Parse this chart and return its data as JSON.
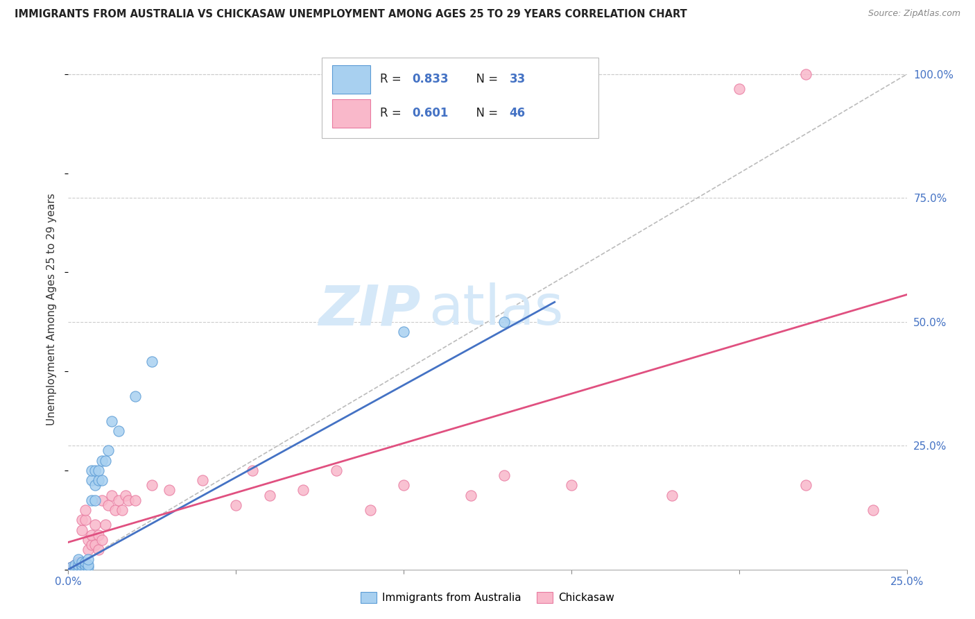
{
  "title": "IMMIGRANTS FROM AUSTRALIA VS CHICKASAW UNEMPLOYMENT AMONG AGES 25 TO 29 YEARS CORRELATION CHART",
  "source": "Source: ZipAtlas.com",
  "ylabel": "Unemployment Among Ages 25 to 29 years",
  "xlim": [
    0.0,
    0.25
  ],
  "ylim": [
    0.0,
    1.05
  ],
  "xticks": [
    0.0,
    0.05,
    0.1,
    0.15,
    0.2,
    0.25
  ],
  "yticks": [
    0.25,
    0.5,
    0.75,
    1.0
  ],
  "xtick_labels": [
    "0.0%",
    "",
    "",
    "",
    "",
    "25.0%"
  ],
  "ytick_labels_right": [
    "25.0%",
    "50.0%",
    "75.0%",
    "100.0%"
  ],
  "legend_labels": [
    "Immigrants from Australia",
    "Chickasaw"
  ],
  "blue_R": "0.833",
  "blue_N": "33",
  "pink_R": "0.601",
  "pink_N": "46",
  "blue_color": "#a8d0f0",
  "pink_color": "#f9b8ca",
  "blue_edge_color": "#5b9bd5",
  "pink_edge_color": "#e87aa0",
  "blue_line_color": "#4472c4",
  "pink_line_color": "#e05080",
  "diag_color": "#bbbbbb",
  "background_color": "#ffffff",
  "watermark_text": "ZIPatlas",
  "watermark_color": "#d5e8f8",
  "grid_color": "#cccccc",
  "blue_scatter_x": [
    0.001,
    0.002,
    0.002,
    0.003,
    0.003,
    0.003,
    0.004,
    0.004,
    0.004,
    0.005,
    0.005,
    0.005,
    0.006,
    0.006,
    0.006,
    0.007,
    0.007,
    0.007,
    0.008,
    0.008,
    0.008,
    0.009,
    0.009,
    0.01,
    0.01,
    0.011,
    0.012,
    0.013,
    0.015,
    0.02,
    0.025,
    0.1,
    0.13
  ],
  "blue_scatter_y": [
    0.005,
    0.005,
    0.01,
    0.005,
    0.01,
    0.02,
    0.005,
    0.01,
    0.015,
    0.005,
    0.01,
    0.015,
    0.005,
    0.01,
    0.02,
    0.14,
    0.18,
    0.2,
    0.14,
    0.17,
    0.2,
    0.18,
    0.2,
    0.18,
    0.22,
    0.22,
    0.24,
    0.3,
    0.28,
    0.35,
    0.42,
    0.48,
    0.5
  ],
  "pink_scatter_x": [
    0.001,
    0.002,
    0.002,
    0.003,
    0.003,
    0.004,
    0.004,
    0.005,
    0.005,
    0.006,
    0.006,
    0.007,
    0.007,
    0.008,
    0.008,
    0.009,
    0.009,
    0.01,
    0.01,
    0.011,
    0.012,
    0.013,
    0.014,
    0.015,
    0.016,
    0.017,
    0.018,
    0.02,
    0.025,
    0.03,
    0.04,
    0.05,
    0.055,
    0.06,
    0.07,
    0.08,
    0.09,
    0.1,
    0.12,
    0.13,
    0.15,
    0.18,
    0.2,
    0.22,
    0.22,
    0.24
  ],
  "pink_scatter_y": [
    0.005,
    0.01,
    0.005,
    0.01,
    0.015,
    0.08,
    0.1,
    0.1,
    0.12,
    0.04,
    0.06,
    0.05,
    0.07,
    0.05,
    0.09,
    0.04,
    0.07,
    0.06,
    0.14,
    0.09,
    0.13,
    0.15,
    0.12,
    0.14,
    0.12,
    0.15,
    0.14,
    0.14,
    0.17,
    0.16,
    0.18,
    0.13,
    0.2,
    0.15,
    0.16,
    0.2,
    0.12,
    0.17,
    0.15,
    0.19,
    0.17,
    0.15,
    0.97,
    0.17,
    1.0,
    0.12
  ],
  "blue_line_x": [
    0.0,
    0.145
  ],
  "blue_line_y": [
    0.0,
    0.54
  ],
  "pink_line_x": [
    0.0,
    0.25
  ],
  "pink_line_y": [
    0.055,
    0.555
  ],
  "diag_line_x": [
    0.0,
    0.25
  ],
  "diag_line_y": [
    0.0,
    1.0
  ]
}
